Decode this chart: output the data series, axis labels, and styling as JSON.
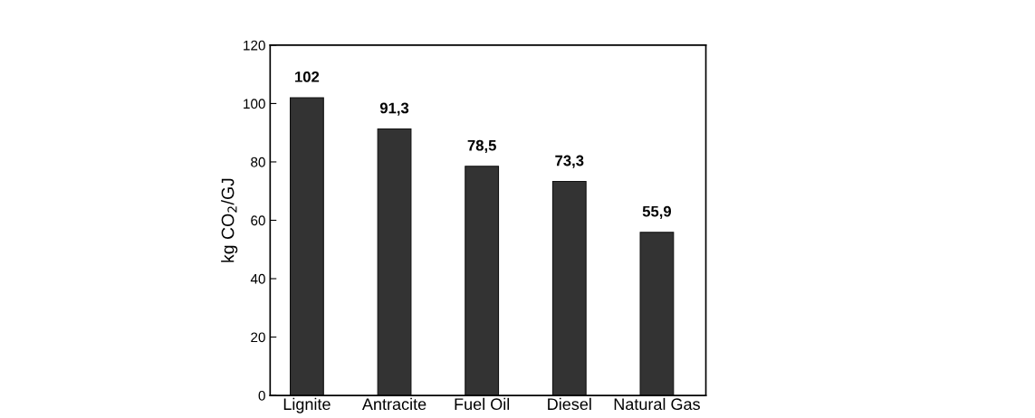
{
  "chart_data": {
    "type": "bar",
    "ylabel": "kg CO$_{2}$/GJ",
    "categories": [
      "Lignite",
      "Antracite",
      "Fuel Oil",
      "Diesel",
      "Natural Gas"
    ],
    "values": [
      102,
      91.3,
      78.5,
      73.3,
      55.9
    ],
    "value_labels": [
      "102",
      "91,3",
      "78,5",
      "73,3",
      "55,9"
    ],
    "color": "#333333",
    "ylim": [
      0,
      120
    ],
    "yticks": [
      0,
      20,
      40,
      60,
      80,
      100,
      120
    ],
    "grid": false
  }
}
